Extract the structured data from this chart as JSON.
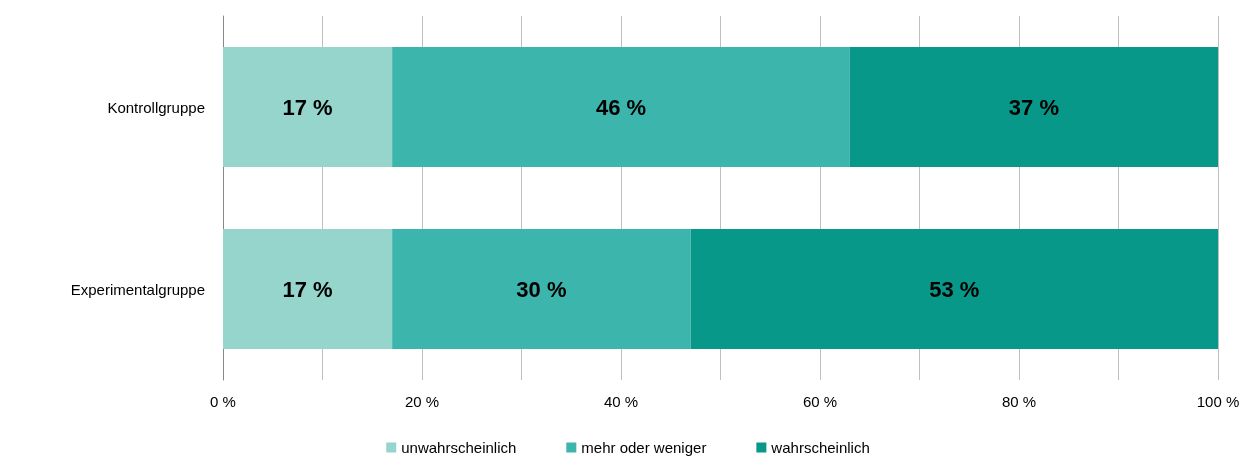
{
  "chart_data": {
    "type": "bar",
    "orientation": "horizontal",
    "stacked": true,
    "categories": [
      "Kontrollgruppe",
      "Experimentalgruppe"
    ],
    "series": [
      {
        "name": "unwahrscheinlich",
        "color": "#95d5cc",
        "values": [
          17,
          17
        ],
        "value_labels": [
          "17 %",
          "17 %"
        ]
      },
      {
        "name": "mehr oder weniger",
        "color": "#3cb5ac",
        "values": [
          46,
          30
        ],
        "value_labels": [
          "46 %",
          "30 %"
        ]
      },
      {
        "name": "wahrscheinlich",
        "color": "#08988a",
        "values": [
          37,
          53
        ],
        "value_labels": [
          "37 %",
          "53 %"
        ]
      }
    ],
    "xlim": [
      0,
      100
    ],
    "xticks": [
      {
        "value": 0,
        "label": "0 %"
      },
      {
        "value": 10,
        "label": null
      },
      {
        "value": 20,
        "label": "20 %"
      },
      {
        "value": 30,
        "label": null
      },
      {
        "value": 40,
        "label": "40 %"
      },
      {
        "value": 50,
        "label": null
      },
      {
        "value": 60,
        "label": "60 %"
      },
      {
        "value": 70,
        "label": null
      },
      {
        "value": 80,
        "label": "80 %"
      },
      {
        "value": 90,
        "label": null
      },
      {
        "value": 100,
        "label": "100 %"
      }
    ],
    "grid": "x",
    "legend": "bottom"
  }
}
